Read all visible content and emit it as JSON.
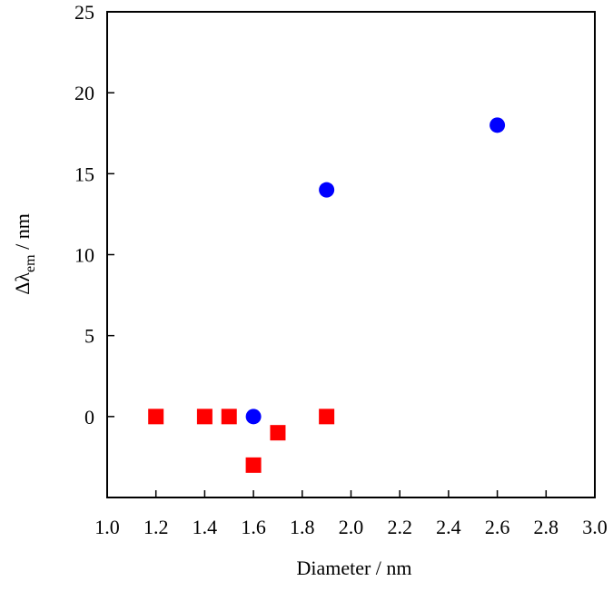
{
  "chart_data": {
    "type": "scatter",
    "x_label": "Diameter / nm",
    "y_label_parts": [
      "Δλ",
      "em",
      " / nm"
    ],
    "xlim": [
      1.0,
      3.0
    ],
    "xticks": [
      {
        "value": 1.0,
        "label": "1.0"
      },
      1.2,
      1.4,
      1.6,
      1.8,
      {
        "value": 2.0,
        "label": "2.0"
      },
      2.2,
      2.4,
      2.6,
      2.8,
      {
        "value": 3.0,
        "label": "3.0"
      }
    ],
    "ylim": [
      -5,
      25
    ],
    "yticks": [
      0,
      5,
      10,
      15,
      20,
      25
    ],
    "grid": false,
    "series": [
      {
        "color": "#ff0000",
        "marker": "square",
        "x": [
          1.2,
          1.4,
          1.5,
          1.6,
          1.7,
          1.9
        ],
        "values": [
          0,
          0,
          0,
          -3,
          -1,
          0
        ]
      },
      {
        "color": "#0000ff",
        "marker": "circle",
        "x": [
          1.6,
          1.9,
          2.6
        ],
        "values": [
          0,
          14,
          18
        ]
      }
    ]
  }
}
